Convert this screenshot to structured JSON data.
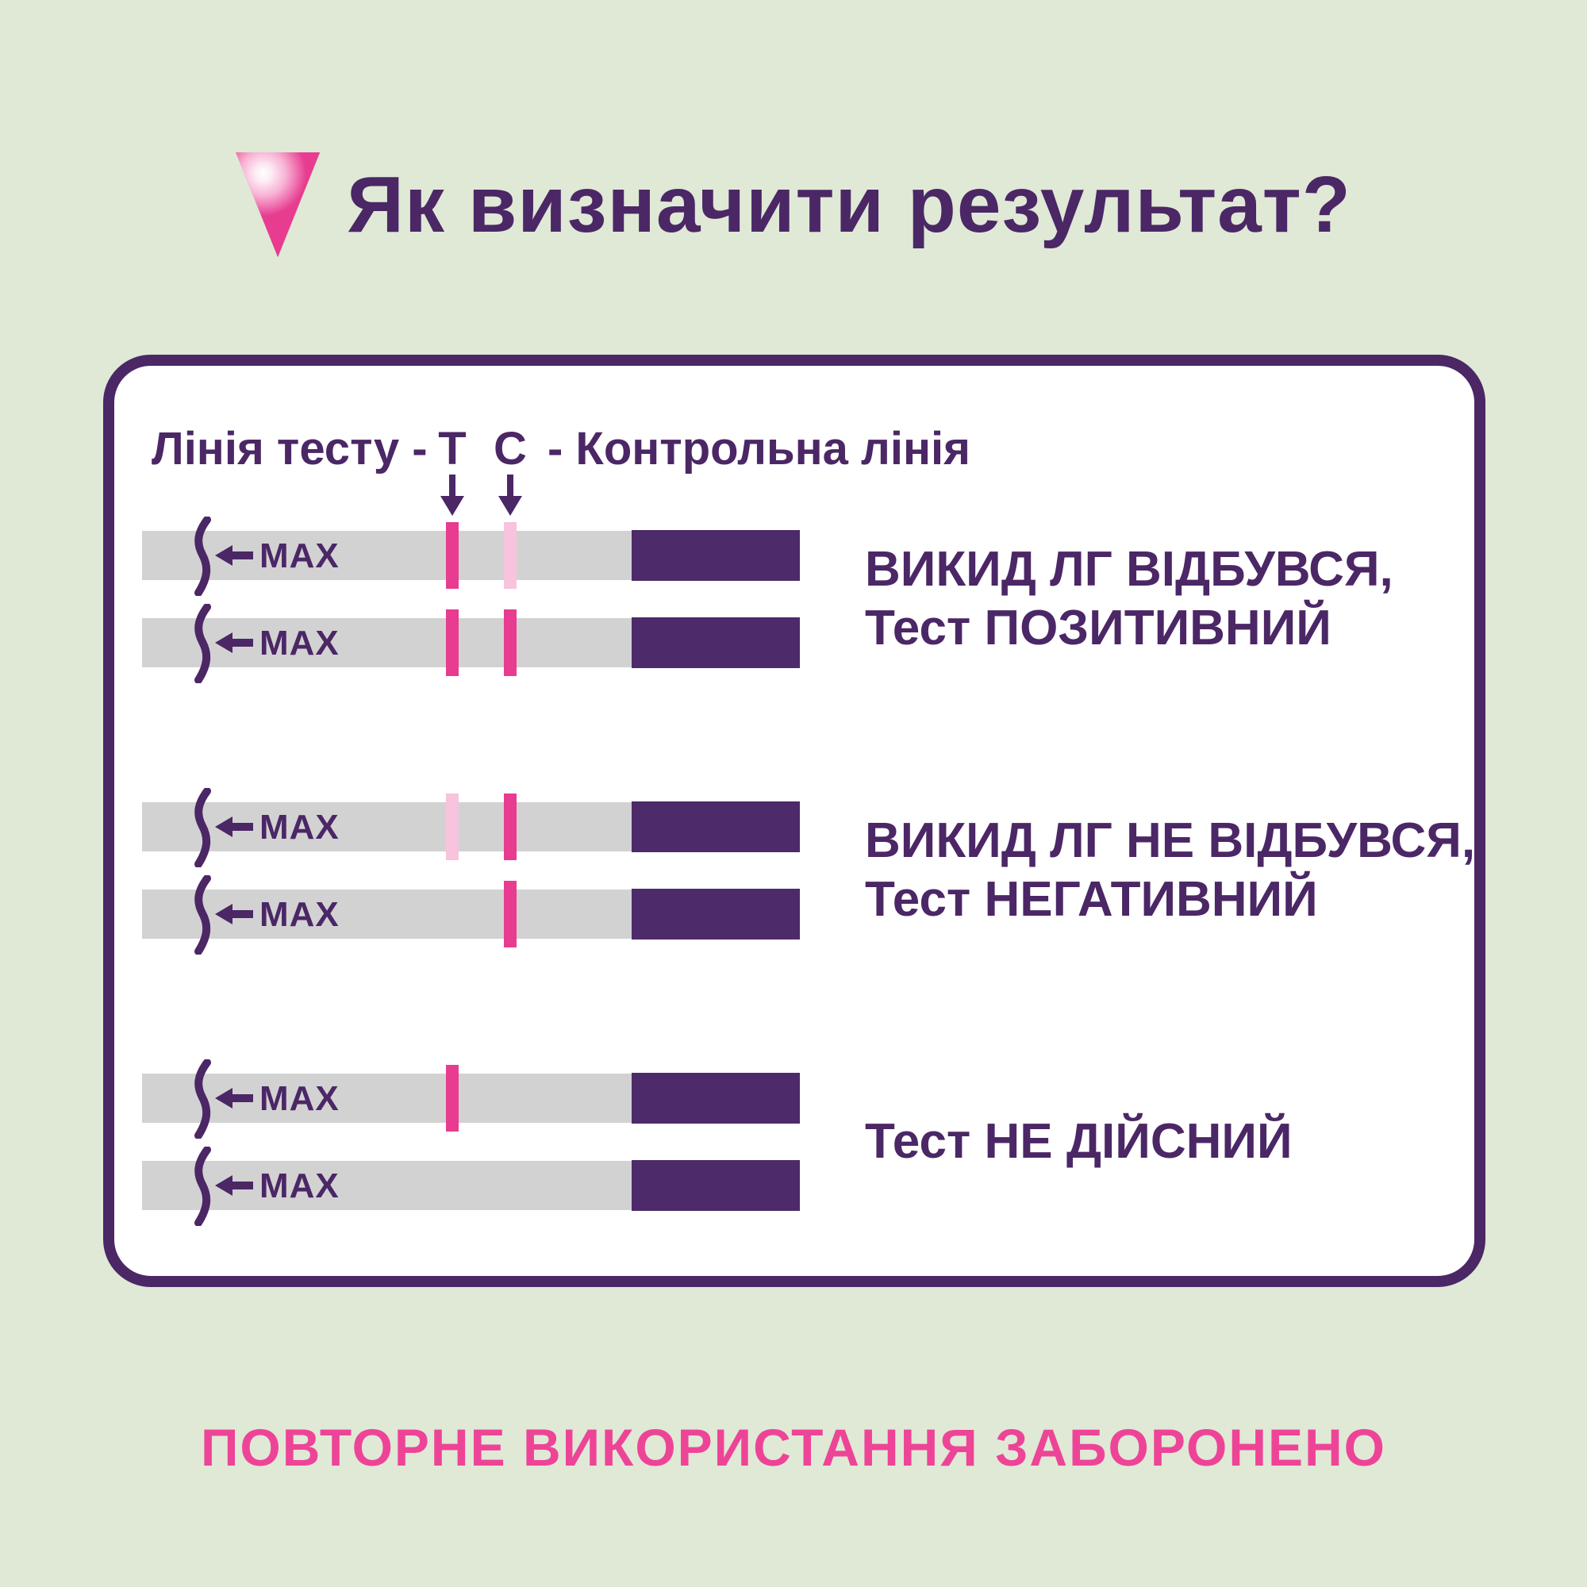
{
  "header": {
    "title": "Як визначити результат?"
  },
  "legend": {
    "left": "Лінія тесту -",
    "t": "Т",
    "c": "С",
    "right": "- Контрольна лінія"
  },
  "strip": {
    "max_label": "MAX"
  },
  "groups": [
    {
      "result_lines": [
        "ВИКИД ЛГ ВІДБУВСЯ,",
        "Тест ПОЗИТИВНИЙ"
      ],
      "strips": [
        {
          "t": "strong",
          "c": "light"
        },
        {
          "t": "strong",
          "c": "strong"
        }
      ]
    },
    {
      "result_lines": [
        "ВИКИД ЛГ НЕ ВІДБУВСЯ,",
        "Тест НЕГАТИВНИЙ"
      ],
      "strips": [
        {
          "t": "light",
          "c": "strong"
        },
        {
          "t": "none",
          "c": "strong"
        }
      ]
    },
    {
      "result_lines": [
        "Тест НЕ ДІЙСНИЙ"
      ],
      "strips": [
        {
          "t": "strong",
          "c": "none"
        },
        {
          "t": "none",
          "c": "none"
        }
      ]
    }
  ],
  "footer": {
    "text": "ПОВТОРНЕ ВИКОРИСТАННЯ ЗАБОРОНЕНО"
  },
  "colors": {
    "background": "#dfe9d6",
    "purple": "#4b2766",
    "purple_block": "#4d2a69",
    "strip_gray": "#d2d2d2",
    "pink_strong": "#e73c90",
    "pink_light": "#f7c3dd",
    "pink_accent": "#ee4497",
    "card_bg": "#ffffff"
  }
}
